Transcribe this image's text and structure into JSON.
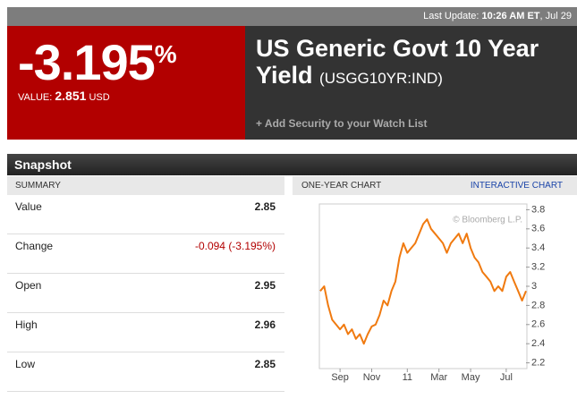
{
  "header": {
    "last_update_label": "Last Update:",
    "time": "10:26 AM ET",
    "date": ", Jul 29"
  },
  "quote": {
    "change": "-3.195",
    "percent_sign": "%",
    "value_label": "VALUE:",
    "value": "2.851",
    "currency": "USD",
    "name": "US Generic Govt 10 Year Yield",
    "ticker": "(USGG10YR:IND)",
    "watchlist": "+ Add Security to your Watch List"
  },
  "snapshot": {
    "title": "Snapshot",
    "summary_header": "SUMMARY",
    "chart_header": "ONE-YEAR CHART",
    "chart_link": "INTERACTIVE CHART",
    "rows": [
      [
        "Value",
        "2.85"
      ],
      [
        "Change",
        "-0.094 (-3.195%)"
      ],
      [
        "Open",
        "2.95"
      ],
      [
        "High",
        "2.96"
      ],
      [
        "Low",
        "2.85"
      ]
    ]
  },
  "chart_data": {
    "type": "line",
    "annotation": "© Bloomberg L.P.",
    "categories": [
      null,
      null,
      null,
      null,
      null,
      "Sep",
      null,
      null,
      null,
      null,
      null,
      null,
      null,
      "Nov",
      null,
      null,
      null,
      null,
      null,
      null,
      null,
      null,
      "11",
      null,
      null,
      null,
      null,
      null,
      null,
      null,
      "Mar",
      null,
      null,
      null,
      null,
      null,
      null,
      null,
      "May",
      null,
      null,
      null,
      null,
      null,
      null,
      null,
      null,
      "Jul",
      null,
      null,
      null,
      null,
      null
    ],
    "values": [
      2.95,
      3.0,
      2.8,
      2.65,
      2.6,
      2.55,
      2.6,
      2.5,
      2.55,
      2.45,
      2.5,
      2.4,
      2.5,
      2.58,
      2.6,
      2.7,
      2.85,
      2.8,
      2.95,
      3.05,
      3.3,
      3.45,
      3.35,
      3.4,
      3.45,
      3.55,
      3.65,
      3.7,
      3.6,
      3.55,
      3.5,
      3.45,
      3.35,
      3.45,
      3.5,
      3.55,
      3.45,
      3.55,
      3.4,
      3.3,
      3.25,
      3.15,
      3.1,
      3.05,
      2.95,
      3.0,
      2.95,
      3.1,
      3.15,
      3.05,
      2.95,
      2.85,
      2.95
    ],
    "color": "#f07a10",
    "ylim": [
      2.14,
      3.86
    ],
    "yticks": [
      2.2,
      2.4,
      2.6,
      2.8,
      3,
      3.2,
      3.4,
      3.6,
      3.8
    ]
  }
}
